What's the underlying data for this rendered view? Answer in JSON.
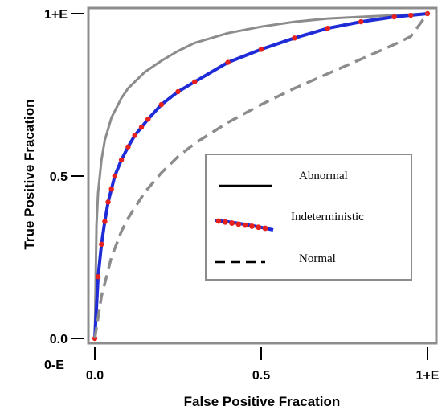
{
  "chart_data": {
    "type": "line",
    "xlabel": "False Positive Fracation",
    "ylabel": "True Positive Fracation",
    "xlim": [
      0,
      1
    ],
    "ylim": [
      0,
      1
    ],
    "x_ticks": [
      {
        "value": 0,
        "label": "0.0"
      },
      {
        "value": 0.5,
        "label": "0.5"
      },
      {
        "value": 1,
        "label": "1+E"
      }
    ],
    "y_ticks": [
      {
        "value": 0,
        "label": "0.0"
      },
      {
        "value": 0.5,
        "label": "0.5"
      },
      {
        "value": 1,
        "label": "1+E"
      }
    ],
    "origin_label": "0-E",
    "grid": false,
    "legend_position": "center-right",
    "series": [
      {
        "name": "Abnormal",
        "style": "solid",
        "color": "#8c8c8c",
        "x": [
          0,
          0.005,
          0.01,
          0.02,
          0.03,
          0.05,
          0.08,
          0.1,
          0.15,
          0.2,
          0.25,
          0.3,
          0.4,
          0.5,
          0.6,
          0.7,
          0.8,
          0.9,
          1.0
        ],
        "y": [
          0,
          0.35,
          0.45,
          0.55,
          0.61,
          0.68,
          0.74,
          0.77,
          0.82,
          0.855,
          0.885,
          0.91,
          0.94,
          0.96,
          0.975,
          0.985,
          0.99,
          0.995,
          1.0
        ]
      },
      {
        "name": "Indeterministic",
        "style": "markers",
        "color": "#1f2bd6",
        "marker_color": "#e8201c",
        "x": [
          0,
          0.01,
          0.02,
          0.03,
          0.04,
          0.05,
          0.06,
          0.08,
          0.1,
          0.12,
          0.14,
          0.16,
          0.2,
          0.25,
          0.3,
          0.4,
          0.5,
          0.6,
          0.7,
          0.8,
          0.9,
          0.95,
          1.0
        ],
        "y": [
          0,
          0.19,
          0.29,
          0.36,
          0.42,
          0.46,
          0.5,
          0.55,
          0.59,
          0.625,
          0.65,
          0.675,
          0.72,
          0.76,
          0.79,
          0.85,
          0.89,
          0.925,
          0.955,
          0.975,
          0.99,
          0.995,
          1.0
        ]
      },
      {
        "name": "Normal",
        "style": "dashed",
        "color": "#8c8c8c",
        "x": [
          0,
          0.02,
          0.05,
          0.08,
          0.1,
          0.15,
          0.2,
          0.25,
          0.3,
          0.4,
          0.5,
          0.6,
          0.7,
          0.8,
          0.9,
          0.95,
          1.0
        ],
        "y": [
          0,
          0.13,
          0.25,
          0.33,
          0.37,
          0.45,
          0.51,
          0.56,
          0.6,
          0.665,
          0.72,
          0.77,
          0.815,
          0.86,
          0.905,
          0.93,
          1.0
        ]
      }
    ]
  }
}
